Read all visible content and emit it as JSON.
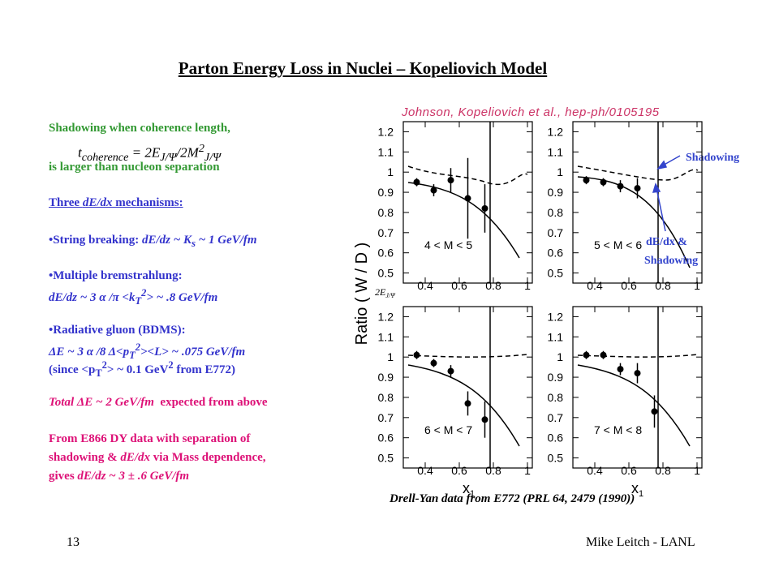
{
  "title": "Parton Energy Loss in Nuclei – Kopeliovich Model",
  "left": {
    "line0": "Shadowing when coherence length,",
    "formula": [
      "t",
      "coherence",
      "= 2",
      "E",
      "J/Ψ",
      "/2",
      "M",
      "2",
      "J/Ψ"
    ],
    "line1": "is larger than nucleon separation",
    "line2": [
      "Three ",
      "dE/dx",
      " mechanisms:"
    ],
    "line3": [
      "•String breaking: ",
      "dE/dz ~ K",
      "s",
      " ~ 1 GeV/fm"
    ],
    "line4": "•Multiple bremstrahlung:",
    "line5": [
      "dE/dz ~ 3 α /π <k",
      "T",
      "2",
      "> ~ .8 GeV/fm"
    ],
    "line6": "•Radiative gluon (BDMS):",
    "line7": [
      "ΔE ~ 3 α /8 Δ<p",
      "T",
      "2",
      "><L> ~ .075 GeV/fm"
    ],
    "line8": [
      "(since <p",
      "T",
      "2",
      "> ~ 0.1 GeV",
      "2",
      " from E772)"
    ],
    "line9": [
      "Total ΔE ~ 2 GeV/fm",
      "  expected from above"
    ],
    "line10": "From E866 DY data with separation of",
    "line11": [
      "shadowing & ",
      "dE/dx",
      " via Mass dependence,"
    ],
    "line12": [
      "gives ",
      "dE/dz ~ 3 ± .6 GeV/fm"
    ]
  },
  "citation": "Johnson, Kopeliovich et al., hep-ph/0105195",
  "plot": {
    "ylabel": "Ratio ( W / D )",
    "xlabel": "x",
    "xlabel_sub": "1",
    "threshold": [
      "2E",
      "J/Ψ"
    ],
    "xlim": [
      0.3,
      1.0
    ],
    "ylim": [
      0.45,
      1.25
    ],
    "xticks": [
      0.4,
      0.6,
      0.8,
      1
    ],
    "yticks": [
      0.5,
      0.6,
      0.7,
      0.8,
      0.9,
      1,
      1.1,
      1.2
    ],
    "panels": [
      {
        "label": "4 < M < 5",
        "x": [
          0.35,
          0.45,
          0.55,
          0.65,
          0.75
        ],
        "y": [
          0.95,
          0.91,
          0.96,
          0.87,
          0.82
        ],
        "err": [
          0.02,
          0.03,
          0.06,
          0.2,
          0.12
        ]
      },
      {
        "label": "5 < M < 6",
        "x": [
          0.35,
          0.45,
          0.55,
          0.65
        ],
        "y": [
          0.96,
          0.95,
          0.93,
          0.92
        ],
        "err": [
          0.02,
          0.02,
          0.03,
          0.05
        ]
      },
      {
        "label": "6 < M < 7",
        "x": [
          0.35,
          0.45,
          0.55,
          0.65,
          0.75
        ],
        "y": [
          1.01,
          0.97,
          0.93,
          0.77,
          0.69
        ],
        "err": [
          0.02,
          0.02,
          0.03,
          0.06,
          0.09
        ]
      },
      {
        "label": "7 < M < 8",
        "x": [
          0.35,
          0.45,
          0.55,
          0.65,
          0.75
        ],
        "y": [
          1.01,
          1.01,
          0.94,
          0.92,
          0.73
        ],
        "err": [
          0.02,
          0.02,
          0.03,
          0.05,
          0.08
        ]
      }
    ],
    "annot_shadowing": "Shadowing",
    "annot_dedx": [
      "dE/dx &",
      "Shadowing"
    ]
  },
  "caption": "Drell-Yan data from E772 (PRL 64, 2479 (1990))",
  "page": "13",
  "author": "Mike Leitch - LANL"
}
